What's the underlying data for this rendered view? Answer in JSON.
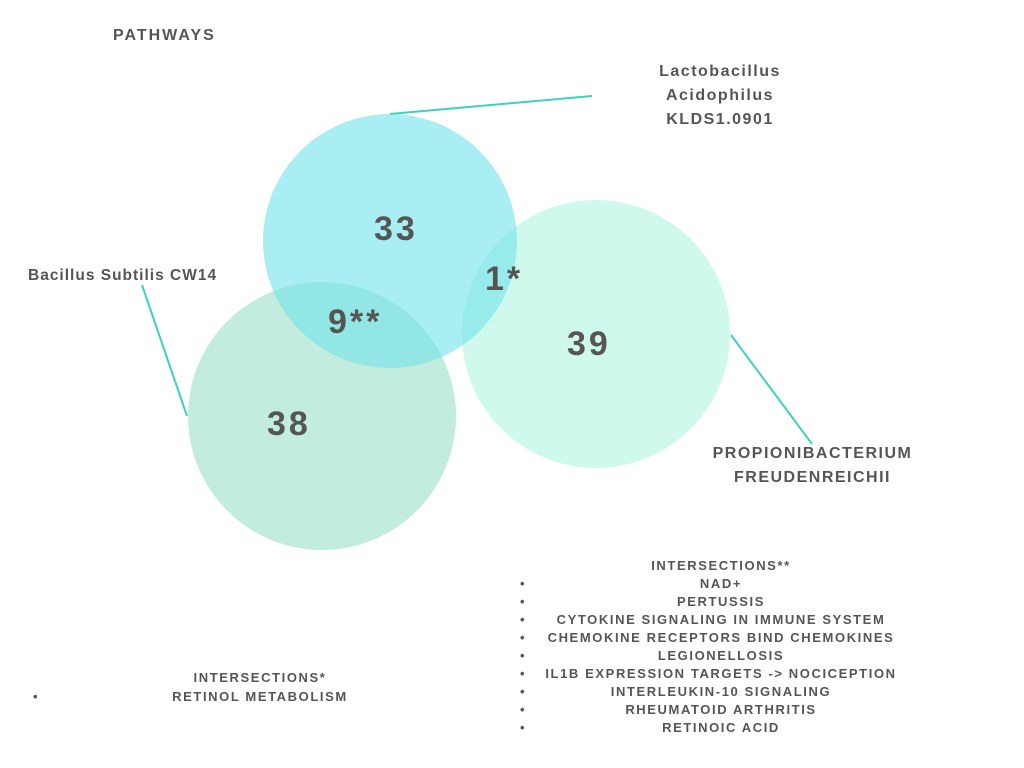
{
  "title": "PATHWAYS",
  "sets": [
    {
      "id": "lacto",
      "label_lines": [
        "Lactobacillus",
        "Acidophilus",
        "KLDS1.0901"
      ],
      "count": "33",
      "color": "#8fe9ef"
    },
    {
      "id": "bacillus",
      "label_lines": [
        "Bacillus Subtilis CW14"
      ],
      "count": "38",
      "color": "#aee6d3"
    },
    {
      "id": "propioni",
      "label_lines": [
        "PROPIONIBACTERIUM",
        "FREUDENREICHII"
      ],
      "count": "39",
      "color": "#bff7e6"
    }
  ],
  "intersections": {
    "lacto_bacillus": "9**",
    "lacto_propioni": "1*"
  },
  "connector_color": "#3fd1bd",
  "intersection_lists": {
    "single": {
      "heading": "INTERSECTIONS*",
      "items": [
        "RETINOL METABOLISM"
      ]
    },
    "double": {
      "heading": "INTERSECTIONS**",
      "items": [
        "NAD+",
        "PERTUSSIS",
        "CYTOKINE SIGNALING IN IMMUNE SYSTEM",
        "CHEMOKINE RECEPTORS BIND CHEMOKINES",
        "LEGIONELLOSIS",
        "IL1B EXPRESSION TARGETS -> NOCICEPTION",
        "INTERLEUKIN-10 SIGNALING",
        "RHEUMATOID ARTHRITIS",
        "RETINOIC ACID"
      ]
    }
  }
}
